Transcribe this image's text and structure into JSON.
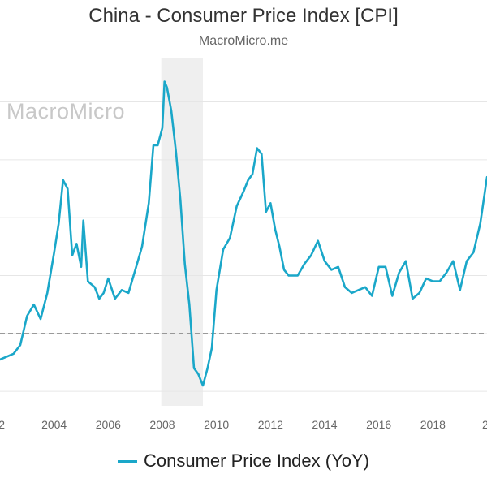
{
  "header": {
    "title": "China - Consumer Price Index [CPI]",
    "subtitle": "MacroMicro.me"
  },
  "watermark": "MacroMicro",
  "legend": {
    "label": "Consumer Price Index (YoY)"
  },
  "colors": {
    "line": "#1aa7c9",
    "recession": "#efefef",
    "grid": "#e6e6e6",
    "reference": "#8c8c8c"
  },
  "chart_data": {
    "type": "line",
    "title": "China - Consumer Price Index [CPI]",
    "xlabel": "",
    "ylabel": "",
    "x_ticks": [
      "2",
      "2004",
      "2006",
      "2008",
      "2010",
      "2012",
      "2014",
      "2016",
      "2018",
      "2"
    ],
    "xlim": [
      2002,
      2020
    ],
    "ylim": [
      -2.5,
      9.5
    ],
    "reference_line": 0,
    "shaded_ranges": [
      [
        2007.96,
        2009.5
      ]
    ],
    "grid": "horizontal",
    "legend_position": "bottom",
    "series": [
      {
        "name": "Consumer Price Index (YoY)",
        "x": [
          2002.0,
          2002.25,
          2002.5,
          2002.75,
          2003.0,
          2003.25,
          2003.5,
          2003.75,
          2004.0,
          2004.17,
          2004.33,
          2004.5,
          2004.67,
          2004.83,
          2005.0,
          2005.08,
          2005.25,
          2005.5,
          2005.67,
          2005.83,
          2006.0,
          2006.25,
          2006.5,
          2006.75,
          2007.0,
          2007.25,
          2007.5,
          2007.67,
          2007.83,
          2008.0,
          2008.08,
          2008.17,
          2008.33,
          2008.5,
          2008.67,
          2008.83,
          2009.0,
          2009.17,
          2009.33,
          2009.5,
          2009.67,
          2009.83,
          2010.0,
          2010.25,
          2010.5,
          2010.75,
          2011.0,
          2011.17,
          2011.33,
          2011.5,
          2011.67,
          2011.83,
          2012.0,
          2012.17,
          2012.33,
          2012.5,
          2012.67,
          2012.83,
          2013.0,
          2013.25,
          2013.5,
          2013.75,
          2014.0,
          2014.25,
          2014.5,
          2014.75,
          2015.0,
          2015.25,
          2015.5,
          2015.75,
          2016.0,
          2016.25,
          2016.5,
          2016.75,
          2017.0,
          2017.25,
          2017.5,
          2017.75,
          2018.0,
          2018.25,
          2018.5,
          2018.75,
          2019.0,
          2019.25,
          2019.5,
          2019.75,
          2020.0
        ],
        "y": [
          -0.9,
          -0.8,
          -0.7,
          -0.4,
          0.6,
          1.0,
          0.5,
          1.4,
          2.8,
          3.8,
          5.3,
          5.0,
          2.7,
          3.1,
          2.3,
          3.9,
          1.8,
          1.6,
          1.2,
          1.4,
          1.9,
          1.2,
          1.5,
          1.4,
          2.2,
          3.0,
          4.5,
          6.5,
          6.5,
          7.1,
          8.7,
          8.5,
          7.7,
          6.3,
          4.6,
          2.4,
          1.0,
          -1.2,
          -1.4,
          -1.8,
          -1.2,
          -0.5,
          1.5,
          2.9,
          3.3,
          4.4,
          4.9,
          5.3,
          5.5,
          6.4,
          6.2,
          4.2,
          4.5,
          3.6,
          3.0,
          2.2,
          2.0,
          2.0,
          2.0,
          2.4,
          2.7,
          3.2,
          2.5,
          2.2,
          2.3,
          1.6,
          1.4,
          1.5,
          1.6,
          1.3,
          2.3,
          2.3,
          1.3,
          2.1,
          2.5,
          1.2,
          1.4,
          1.9,
          1.8,
          1.8,
          2.1,
          2.5,
          1.5,
          2.5,
          2.8,
          3.8,
          5.4
        ]
      }
    ]
  }
}
